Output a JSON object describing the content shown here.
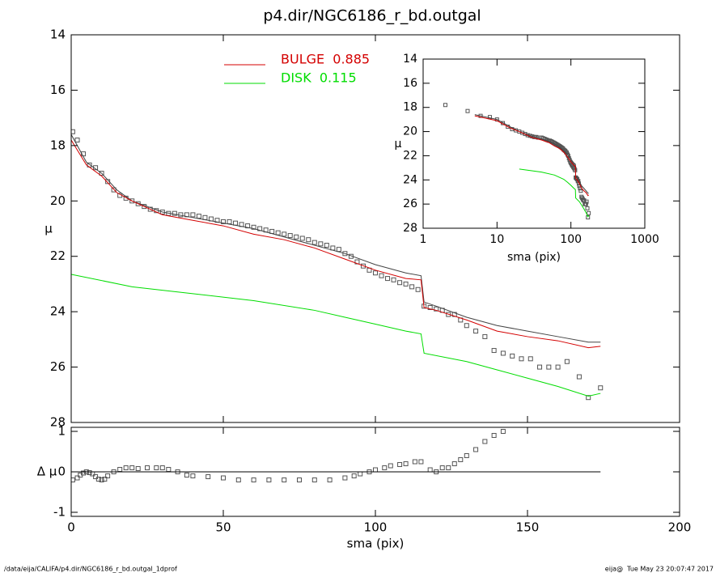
{
  "chart_data": [
    {
      "type": "line",
      "title": "p4.dir/NGC6186_r_bd.outgal",
      "ylabel": "μ",
      "ylim": [
        28,
        14
      ],
      "yticks": [
        14,
        16,
        18,
        20,
        22,
        24,
        26,
        28
      ],
      "series": [
        {
          "marker": "square",
          "color": "#555555",
          "x": [
            0.5,
            2,
            4,
            6,
            8,
            10,
            12,
            14,
            16,
            18,
            20,
            22,
            24,
            26,
            28,
            30,
            32,
            34,
            36,
            38,
            40,
            42,
            44,
            46,
            48,
            50,
            52,
            54,
            56,
            58,
            60,
            62,
            64,
            66,
            68,
            70,
            72,
            74,
            76,
            78,
            80,
            82,
            84,
            86,
            88,
            90,
            92,
            94,
            96,
            98,
            100,
            102,
            104,
            106,
            108,
            110,
            112,
            114,
            116,
            118,
            120,
            122,
            124,
            126,
            128,
            130,
            133,
            136,
            139,
            142,
            145,
            148,
            151,
            154,
            157,
            160,
            163,
            167,
            170,
            174
          ],
          "values": [
            17.5,
            17.8,
            18.3,
            18.7,
            18.8,
            19.0,
            19.3,
            19.6,
            19.8,
            19.9,
            20.0,
            20.1,
            20.2,
            20.3,
            20.35,
            20.4,
            20.45,
            20.45,
            20.5,
            20.5,
            20.5,
            20.55,
            20.6,
            20.65,
            20.7,
            20.75,
            20.75,
            20.8,
            20.85,
            20.9,
            20.95,
            21.0,
            21.05,
            21.1,
            21.15,
            21.2,
            21.25,
            21.3,
            21.35,
            21.4,
            21.5,
            21.55,
            21.6,
            21.7,
            21.75,
            21.9,
            22.0,
            22.2,
            22.35,
            22.5,
            22.6,
            22.7,
            22.8,
            22.85,
            22.95,
            23.0,
            23.1,
            23.2,
            23.8,
            23.85,
            23.9,
            23.95,
            24.1,
            24.1,
            24.3,
            24.5,
            24.7,
            24.9,
            25.4,
            25.5,
            25.6,
            25.7,
            25.7,
            26.0,
            26.0,
            26.0,
            25.8,
            26.35,
            27.1,
            26.75
          ]
        },
        {
          "color": "#444444",
          "x": [
            0,
            5,
            10,
            15,
            20,
            30,
            40,
            50,
            60,
            70,
            80,
            90,
            100,
            110,
            115,
            116,
            120,
            130,
            140,
            150,
            160,
            170,
            174
          ],
          "values": [
            17.6,
            18.6,
            19.0,
            19.6,
            20.0,
            20.4,
            20.6,
            20.8,
            21.0,
            21.3,
            21.6,
            21.9,
            22.3,
            22.6,
            22.7,
            23.65,
            23.8,
            24.2,
            24.5,
            24.7,
            24.9,
            25.1,
            25.1
          ]
        },
        {
          "name": "BULGE  0.885",
          "color": "#d40000",
          "x": [
            0,
            5,
            10,
            15,
            20,
            30,
            40,
            50,
            60,
            70,
            80,
            90,
            100,
            110,
            115,
            116,
            120,
            130,
            140,
            150,
            160,
            170,
            174
          ],
          "values": [
            17.8,
            18.7,
            19.1,
            19.7,
            20.0,
            20.5,
            20.7,
            20.9,
            21.2,
            21.4,
            21.7,
            22.1,
            22.5,
            22.8,
            22.85,
            23.85,
            23.95,
            24.3,
            24.7,
            24.9,
            25.05,
            25.3,
            25.25
          ]
        },
        {
          "name": "DISK  0.115",
          "color": "#00dd00",
          "x": [
            0,
            20,
            40,
            60,
            80,
            90,
            100,
            110,
            115,
            116,
            130,
            140,
            150,
            160,
            170,
            174
          ],
          "values": [
            22.65,
            23.1,
            23.35,
            23.6,
            23.95,
            24.2,
            24.45,
            24.7,
            24.8,
            25.5,
            25.8,
            26.1,
            26.4,
            26.7,
            27.05,
            26.95
          ]
        }
      ]
    },
    {
      "type": "scatter",
      "xlabel": "sma (pix)",
      "ylabel": "Δ μ",
      "xlim": [
        0,
        200
      ],
      "xticks": [
        0,
        50,
        100,
        150,
        200
      ],
      "ylim": [
        -1.1,
        1.1
      ],
      "yticks": [
        -1,
        0,
        1
      ],
      "series": [
        {
          "marker": "square",
          "color": "#555555",
          "x": [
            0.5,
            2,
            3,
            4,
            5,
            6,
            7,
            8,
            9,
            10,
            11,
            12,
            14,
            16,
            18,
            20,
            22,
            25,
            28,
            30,
            32,
            35,
            38,
            40,
            45,
            50,
            55,
            60,
            65,
            70,
            75,
            80,
            85,
            90,
            93,
            95,
            98,
            100,
            103,
            105,
            108,
            110,
            113,
            115,
            118,
            120,
            122,
            124,
            126,
            128,
            130,
            133,
            136,
            139,
            142
          ],
          "values": [
            -0.2,
            -0.15,
            -0.08,
            -0.03,
            0.0,
            -0.02,
            -0.05,
            -0.12,
            -0.18,
            -0.2,
            -0.18,
            -0.1,
            0.0,
            0.06,
            0.1,
            0.1,
            0.08,
            0.1,
            0.1,
            0.1,
            0.06,
            0.0,
            -0.08,
            -0.1,
            -0.12,
            -0.15,
            -0.2,
            -0.2,
            -0.2,
            -0.2,
            -0.2,
            -0.2,
            -0.2,
            -0.15,
            -0.1,
            -0.05,
            0.0,
            0.05,
            0.1,
            0.15,
            0.18,
            0.2,
            0.25,
            0.25,
            0.05,
            0.0,
            0.1,
            0.1,
            0.2,
            0.3,
            0.4,
            0.55,
            0.75,
            0.9,
            1.0
          ]
        },
        {
          "color": "#000000",
          "x": [
            0,
            174
          ],
          "values": [
            0,
            0
          ]
        }
      ]
    },
    {
      "type": "line",
      "xlabel": "sma (pix)",
      "ylabel": "μ",
      "xlog": true,
      "xlim": [
        1,
        1000
      ],
      "xticks": [
        1,
        10,
        100,
        1000
      ],
      "ylim": [
        28,
        14
      ],
      "yticks": [
        14,
        16,
        18,
        20,
        22,
        24,
        26,
        28
      ]
    }
  ],
  "footer": {
    "path": "/data/eija/CALIFA/p4.dir/NGC6186_r_bd.outgal_1dprof",
    "stamp": "eija@  Tue May 23 20:07:47 2017"
  }
}
